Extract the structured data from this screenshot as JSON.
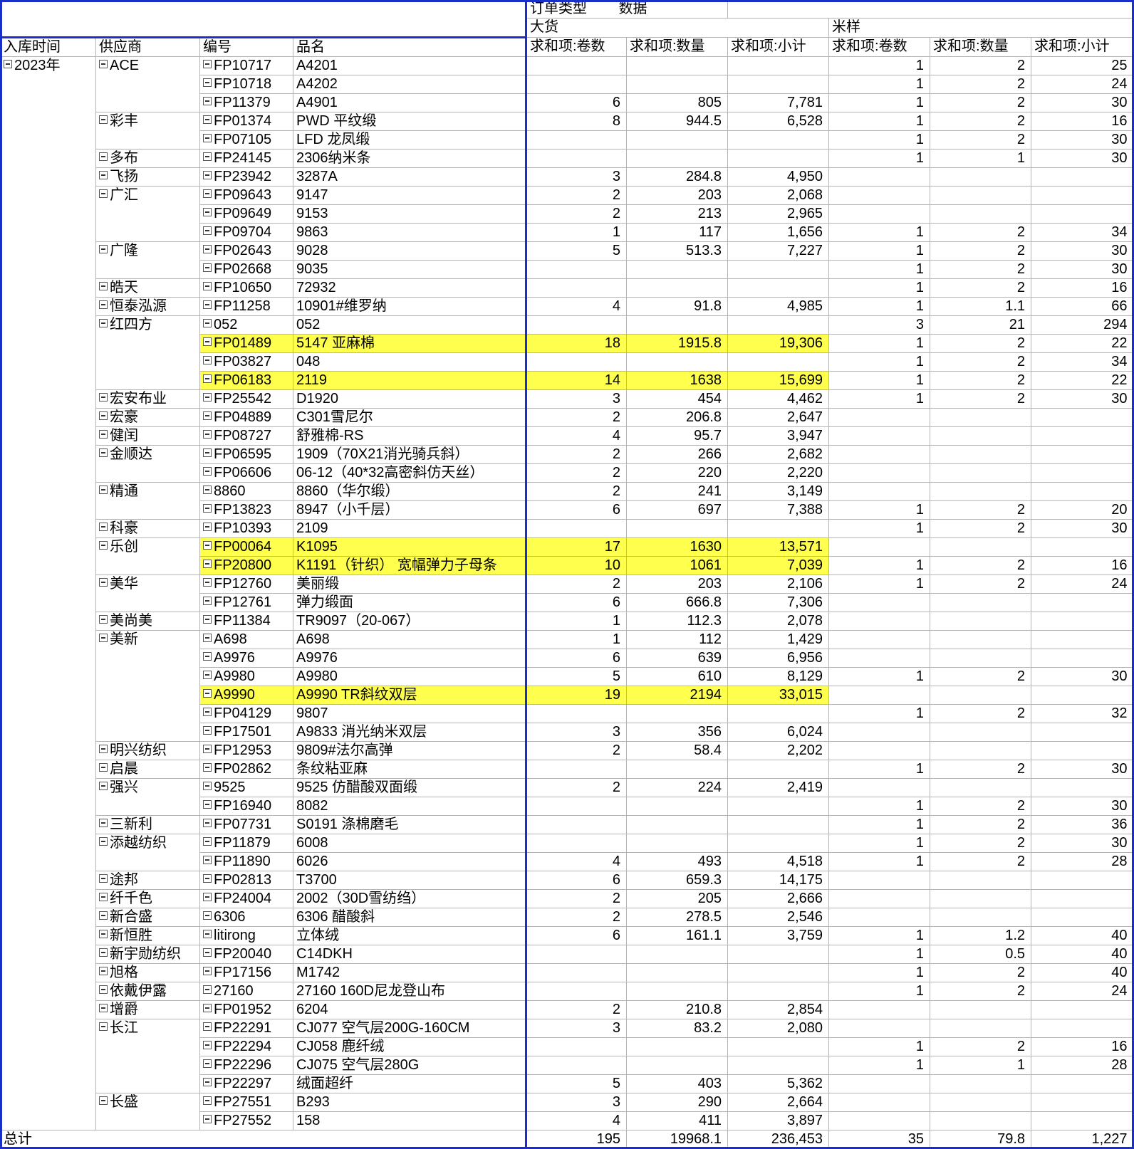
{
  "header": {
    "filter_label": "订单类型",
    "data_label": "数据",
    "group_dahuo": "大货",
    "group_miyang": "米样",
    "row_fields": [
      "入库时间",
      "供应商",
      "编号",
      "品名"
    ],
    "value_fields": [
      "求和项:卷数",
      "求和项:数量",
      "求和项:小计",
      "求和项:卷数",
      "求和项:数量",
      "求和项:小计"
    ]
  },
  "year": "2023年",
  "rows": [
    {
      "supplier": "ACE",
      "code": "FP10717",
      "name": "A4201",
      "v": [
        "",
        "",
        "",
        "1",
        "2",
        "25"
      ]
    },
    {
      "supplier": "",
      "code": "FP10718",
      "name": "A4202",
      "v": [
        "",
        "",
        "",
        "1",
        "2",
        "24"
      ]
    },
    {
      "supplier": "",
      "code": "FP11379",
      "name": "A4901",
      "v": [
        "6",
        "805",
        "7,781",
        "1",
        "2",
        "30"
      ]
    },
    {
      "supplier": "彩丰",
      "code": "FP01374",
      "name": "PWD 平纹缎",
      "v": [
        "8",
        "944.5",
        "6,528",
        "1",
        "2",
        "16"
      ]
    },
    {
      "supplier": "",
      "code": "FP07105",
      "name": "LFD 龙凤缎",
      "v": [
        "",
        "",
        "",
        "1",
        "2",
        "30"
      ]
    },
    {
      "supplier": "多布",
      "code": "FP24145",
      "name": "2306纳米条",
      "v": [
        "",
        "",
        "",
        "1",
        "1",
        "30"
      ]
    },
    {
      "supplier": "飞扬",
      "code": "FP23942",
      "name": "3287A",
      "v": [
        "3",
        "284.8",
        "4,950",
        "",
        "",
        ""
      ]
    },
    {
      "supplier": "广汇",
      "code": "FP09643",
      "name": "9147",
      "v": [
        "2",
        "203",
        "2,068",
        "",
        "",
        ""
      ]
    },
    {
      "supplier": "",
      "code": "FP09649",
      "name": "9153",
      "v": [
        "2",
        "213",
        "2,965",
        "",
        "",
        ""
      ]
    },
    {
      "supplier": "",
      "code": "FP09704",
      "name": "9863",
      "v": [
        "1",
        "117",
        "1,656",
        "1",
        "2",
        "34"
      ]
    },
    {
      "supplier": "广隆",
      "code": "FP02643",
      "name": "9028",
      "v": [
        "5",
        "513.3",
        "7,227",
        "1",
        "2",
        "30"
      ]
    },
    {
      "supplier": "",
      "code": "FP02668",
      "name": "9035",
      "v": [
        "",
        "",
        "",
        "1",
        "2",
        "30"
      ]
    },
    {
      "supplier": "皓天",
      "code": "FP10650",
      "name": "72932",
      "v": [
        "",
        "",
        "",
        "1",
        "2",
        "16"
      ]
    },
    {
      "supplier": "恒泰泓源",
      "code": "FP11258",
      "name": "10901#维罗纳",
      "v": [
        "4",
        "91.8",
        "4,985",
        "1",
        "1.1",
        "66"
      ]
    },
    {
      "supplier": "红四方",
      "code": "052",
      "name": "052",
      "v": [
        "",
        "",
        "",
        "3",
        "21",
        "294"
      ]
    },
    {
      "supplier": "",
      "code": "FP01489",
      "name": "5147 亚麻棉",
      "v": [
        "18",
        "1915.8",
        "19,306",
        "1",
        "2",
        "22"
      ],
      "hl": true
    },
    {
      "supplier": "",
      "code": "FP03827",
      "name": "048",
      "v": [
        "",
        "",
        "",
        "1",
        "2",
        "34"
      ]
    },
    {
      "supplier": "",
      "code": "FP06183",
      "name": "2119",
      "v": [
        "14",
        "1638",
        "15,699",
        "1",
        "2",
        "22"
      ],
      "hl": true
    },
    {
      "supplier": "宏安布业",
      "code": "FP25542",
      "name": "D1920",
      "v": [
        "3",
        "454",
        "4,462",
        "1",
        "2",
        "30"
      ]
    },
    {
      "supplier": "宏豪",
      "code": "FP04889",
      "name": "C301雪尼尔",
      "v": [
        "2",
        "206.8",
        "2,647",
        "",
        "",
        ""
      ]
    },
    {
      "supplier": "健闰",
      "code": "FP08727",
      "name": "舒雅棉-RS",
      "v": [
        "4",
        "95.7",
        "3,947",
        "",
        "",
        ""
      ]
    },
    {
      "supplier": "金顺达",
      "code": "FP06595",
      "name": "1909（70X21消光骑兵斜）",
      "v": [
        "2",
        "266",
        "2,682",
        "",
        "",
        ""
      ]
    },
    {
      "supplier": "",
      "code": "FP06606",
      "name": "06-12（40*32高密斜仿天丝）",
      "v": [
        "2",
        "220",
        "2,220",
        "",
        "",
        ""
      ]
    },
    {
      "supplier": "精通",
      "code": "8860",
      "name": "8860（华尔缎）",
      "v": [
        "2",
        "241",
        "3,149",
        "",
        "",
        ""
      ]
    },
    {
      "supplier": "",
      "code": "FP13823",
      "name": "8947（小千层）",
      "v": [
        "6",
        "697",
        "7,388",
        "1",
        "2",
        "20"
      ]
    },
    {
      "supplier": "科豪",
      "code": "FP10393",
      "name": "2109",
      "v": [
        "",
        "",
        "",
        "1",
        "2",
        "30"
      ]
    },
    {
      "supplier": "乐创",
      "code": "FP00064",
      "name": "K1095",
      "v": [
        "17",
        "1630",
        "13,571",
        "",
        "",
        ""
      ],
      "hl": true
    },
    {
      "supplier": "",
      "code": "FP20800",
      "name": "K1191（针织） 宽幅弹力子母条",
      "v": [
        "10",
        "1061",
        "7,039",
        "1",
        "2",
        "16"
      ],
      "hl": true
    },
    {
      "supplier": "美华",
      "code": "FP12760",
      "name": "美丽缎",
      "v": [
        "2",
        "203",
        "2,106",
        "1",
        "2",
        "24"
      ]
    },
    {
      "supplier": "",
      "code": "FP12761",
      "name": "弹力缎面",
      "v": [
        "6",
        "666.8",
        "7,306",
        "",
        "",
        ""
      ]
    },
    {
      "supplier": "美尚美",
      "code": "FP11384",
      "name": "TR9097（20-067）",
      "v": [
        "1",
        "112.3",
        "2,078",
        "",
        "",
        ""
      ]
    },
    {
      "supplier": "美新",
      "code": "A698",
      "name": "A698",
      "v": [
        "1",
        "112",
        "1,429",
        "",
        "",
        ""
      ]
    },
    {
      "supplier": "",
      "code": "A9976",
      "name": "A9976",
      "v": [
        "6",
        "639",
        "6,956",
        "",
        "",
        ""
      ]
    },
    {
      "supplier": "",
      "code": "A9980",
      "name": "A9980",
      "v": [
        "5",
        "610",
        "8,129",
        "1",
        "2",
        "30"
      ]
    },
    {
      "supplier": "",
      "code": "A9990",
      "name": "A9990 TR斜纹双层",
      "v": [
        "19",
        "2194",
        "33,015",
        "",
        "",
        ""
      ],
      "hl": true
    },
    {
      "supplier": "",
      "code": "FP04129",
      "name": "9807",
      "v": [
        "",
        "",
        "",
        "1",
        "2",
        "32"
      ]
    },
    {
      "supplier": "",
      "code": "FP17501",
      "name": "A9833 消光纳米双层",
      "v": [
        "3",
        "356",
        "6,024",
        "",
        "",
        ""
      ]
    },
    {
      "supplier": "明兴纺织",
      "code": "FP12953",
      "name": "9809#法尔高弹",
      "v": [
        "2",
        "58.4",
        "2,202",
        "",
        "",
        ""
      ]
    },
    {
      "supplier": "启晨",
      "code": "FP02862",
      "name": "条纹粘亚麻",
      "v": [
        "",
        "",
        "",
        "1",
        "2",
        "30"
      ]
    },
    {
      "supplier": "强兴",
      "code": "9525",
      "name": "9525 仿醋酸双面缎",
      "v": [
        "2",
        "224",
        "2,419",
        "",
        "",
        ""
      ]
    },
    {
      "supplier": "",
      "code": "FP16940",
      "name": "8082",
      "v": [
        "",
        "",
        "",
        "1",
        "2",
        "30"
      ]
    },
    {
      "supplier": "三新利",
      "code": "FP07731",
      "name": "S0191 涤棉磨毛",
      "v": [
        "",
        "",
        "",
        "1",
        "2",
        "36"
      ]
    },
    {
      "supplier": "添越纺织",
      "code": "FP11879",
      "name": "6008",
      "v": [
        "",
        "",
        "",
        "1",
        "2",
        "30"
      ]
    },
    {
      "supplier": "",
      "code": "FP11890",
      "name": "6026",
      "v": [
        "4",
        "493",
        "4,518",
        "1",
        "2",
        "28"
      ]
    },
    {
      "supplier": "途邦",
      "code": "FP02813",
      "name": "T3700",
      "v": [
        "6",
        "659.3",
        "14,175",
        "",
        "",
        ""
      ]
    },
    {
      "supplier": "纤千色",
      "code": "FP24004",
      "name": "2002（30D雪纺绉）",
      "v": [
        "2",
        "205",
        "2,666",
        "",
        "",
        ""
      ]
    },
    {
      "supplier": "新合盛",
      "code": "6306",
      "name": "6306 醋酸斜",
      "v": [
        "2",
        "278.5",
        "2,546",
        "",
        "",
        ""
      ]
    },
    {
      "supplier": "新恒胜",
      "code": "litirong",
      "name": "立体绒",
      "v": [
        "6",
        "161.1",
        "3,759",
        "1",
        "1.2",
        "40"
      ]
    },
    {
      "supplier": "新宇勋纺织",
      "code": "FP20040",
      "name": "C14DKH",
      "v": [
        "",
        "",
        "",
        "1",
        "0.5",
        "40"
      ]
    },
    {
      "supplier": "旭格",
      "code": "FP17156",
      "name": "M1742",
      "v": [
        "",
        "",
        "",
        "1",
        "2",
        "40"
      ]
    },
    {
      "supplier": "依戴伊露",
      "code": "27160",
      "name": "27160 160D尼龙登山布",
      "v": [
        "",
        "",
        "",
        "1",
        "2",
        "24"
      ]
    },
    {
      "supplier": "增爵",
      "code": "FP01952",
      "name": "6204",
      "v": [
        "2",
        "210.8",
        "2,854",
        "",
        "",
        ""
      ]
    },
    {
      "supplier": "长江",
      "code": "FP22291",
      "name": "CJ077 空气层200G-160CM",
      "v": [
        "3",
        "83.2",
        "2,080",
        "",
        "",
        ""
      ]
    },
    {
      "supplier": "",
      "code": "FP22294",
      "name": "CJ058 鹿纤绒",
      "v": [
        "",
        "",
        "",
        "1",
        "2",
        "16"
      ]
    },
    {
      "supplier": "",
      "code": "FP22296",
      "name": "CJ075 空气层280G",
      "v": [
        "",
        "",
        "",
        "1",
        "1",
        "28"
      ]
    },
    {
      "supplier": "",
      "code": "FP22297",
      "name": "绒面超纤",
      "v": [
        "5",
        "403",
        "5,362",
        "",
        "",
        ""
      ]
    },
    {
      "supplier": "长盛",
      "code": "FP27551",
      "name": "B293",
      "v": [
        "3",
        "290",
        "2,664",
        "",
        "",
        ""
      ]
    },
    {
      "supplier": "",
      "code": "FP27552",
      "name": "158",
      "v": [
        "4",
        "411",
        "3,897",
        "",
        "",
        ""
      ]
    }
  ],
  "total": {
    "label": "总计",
    "v": [
      "195",
      "19968.1",
      "236,453",
      "35",
      "79.8",
      "1,227"
    ]
  },
  "colors": {
    "highlight": "#ffff4d",
    "pivot_border": "#1a2ec8",
    "grid": "#b4b4b4"
  }
}
